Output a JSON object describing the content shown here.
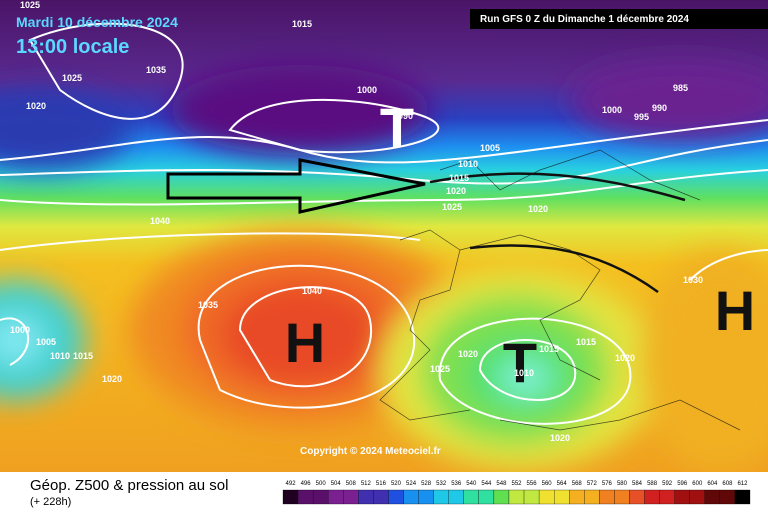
{
  "header": {
    "date": "Mardi 10 décembre 2024",
    "time": "13:00 locale",
    "run": "Run GFS 0 Z du Dimanche 1 décembre 2024"
  },
  "footer": {
    "title": "Géop. Z500 & pression au sol",
    "lead": "(+ 228h)",
    "copyright": "Copyright © 2024 Meteociel.fr"
  },
  "centers": [
    "H",
    "T",
    "T",
    "H"
  ],
  "isobars": [
    1025,
    1015,
    1025,
    1035,
    1020,
    1000,
    990,
    985,
    1000,
    990,
    995,
    1005,
    1010,
    1015,
    1020,
    1025,
    1020,
    1040,
    1035,
    1040,
    1030,
    1000,
    1005,
    1010,
    1015,
    1020,
    1020,
    1015,
    1015,
    1020,
    1025,
    1020,
    1010
  ],
  "scale": [
    492,
    496,
    500,
    504,
    508,
    512,
    516,
    520,
    524,
    528,
    532,
    536,
    540,
    544,
    548,
    552,
    556,
    560,
    564,
    568,
    572,
    576,
    580,
    584,
    588,
    592,
    596,
    600,
    604,
    608,
    612
  ]
}
